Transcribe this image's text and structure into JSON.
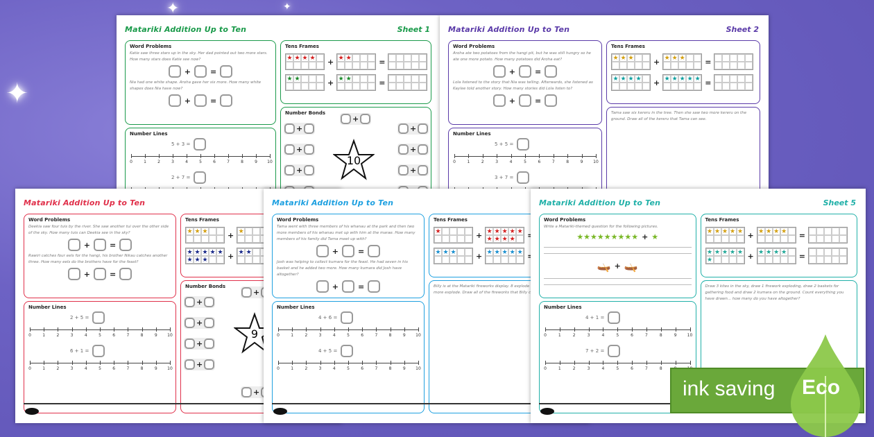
{
  "badge": {
    "text": "ink saving",
    "eco": "Eco",
    "color": "#6aa83a"
  },
  "sheets": [
    {
      "id": "sheet-1",
      "color": "#1a9a4a",
      "title": "Matariki Addition Up to Ten",
      "sheet_label": "Sheet 1",
      "word_problems_heading": "Word Problems",
      "word_problems": [
        "Katie saw three stars up in the sky. Her dad pointed out two more stars. How many stars does Katie see now?",
        "Nia had one white shape. Aroha gave her six more. How many white shapes does Nia have now?"
      ],
      "number_lines_heading": "Number Lines",
      "number_lines": [
        "5 + 3 =",
        "2 + 7 ="
      ],
      "ten_frames_heading": "Tens Frames",
      "ten_frames": [
        {
          "a": 4,
          "b": 2,
          "star_color": "#d42020"
        },
        {
          "a": 2,
          "b": 2,
          "star_color": "#1a8a2a"
        }
      ],
      "number_bonds": {
        "heading": "Number Bonds",
        "target": "10"
      }
    },
    {
      "id": "sheet-2",
      "color": "#5a3aa8",
      "title": "Matariki Addition Up to Ten",
      "sheet_label": "Sheet 2",
      "word_problems_heading": "Word Problems",
      "word_problems": [
        "Aroha ate two potatoes from the hangi pit, but he was still hungry so he ate one more potato. How many potatoes did Aroha eat?",
        "Lola listened to the story that Nia was telling. Afterwards, she listened as Kaylee told another story. How many stories did Lola listen to?"
      ],
      "number_lines_heading": "Number Lines",
      "number_lines": [
        "5 + 5 =",
        "3 + 7 ="
      ],
      "ten_frames_heading": "Tens Frames",
      "ten_frames": [
        {
          "a": 3,
          "b": 3,
          "star_color": "#d4a010"
        },
        {
          "a": 4,
          "b": 5,
          "star_color": "#10a0a0"
        }
      ],
      "text_task": "Tama saw six kereru in the tree. Then she saw two more kereru on the ground. Draw all of the kereru that Tama can see."
    },
    {
      "id": "sheet-3",
      "color": "#e0304a",
      "title": "Matariki Addition Up to Ten",
      "sheet_label": "",
      "word_problems_heading": "Word Problems",
      "word_problems": [
        "Deekia saw four tuis by the river. She saw another tui over the other side of the sky. How many tuis can Deekia see in the sky?",
        "Rawiri catches four eels for the hangi, his brother Nikau catches another three. How many eels do the brothers have for the feast?"
      ],
      "number_lines_heading": "Number Lines",
      "number_lines": [
        "2 + 5 =",
        "6 + 1 ="
      ],
      "ten_frames_heading": "Tens Frames",
      "ten_frames": [
        {
          "a": 3,
          "b": 1,
          "star_color": "#d4a010"
        },
        {
          "a": 8,
          "b": 2,
          "star_color": "#1a2a8a"
        }
      ],
      "number_bonds": {
        "heading": "Number Bonds",
        "target": "9"
      }
    },
    {
      "id": "sheet-4",
      "color": "#1ea0e0",
      "title": "Matariki Addition Up to Ten",
      "sheet_label": "",
      "word_problems_heading": "Word Problems",
      "word_problems": [
        "Tama went with three members of his whanau at the park and then two more members of his whanau met up with him at the marae. How many members of his family did Tama meet up with?",
        "Josh was helping to collect kumara for the feast. He had seven in his basket and he added two more. How many kumara did Josh have altogether?"
      ],
      "number_lines_heading": "Number Lines",
      "number_lines": [
        "4 + 6 =",
        "4 + 5 ="
      ],
      "ten_frames_heading": "Tens Frames",
      "ten_frames": [
        {
          "a": 1,
          "b": 9,
          "star_color": "#d42020"
        },
        {
          "a": 3,
          "b": 5,
          "star_color": "#1a90d0"
        }
      ],
      "text_task": "Billy is at the Matariki fireworks display. 8 explode in the air. He sees three more explode. Draw all of the fireworks that Billy could see."
    },
    {
      "id": "sheet-5",
      "color": "#20b0a8",
      "title": "Matariki Addition Up to Ten",
      "sheet_label": "Sheet 5",
      "word_problems_heading": "Word Problems",
      "write_prompt": "Write a Matariki-themed question for the following pictures.",
      "picture_stars": {
        "a": 9,
        "b": 1,
        "star_color": "#7ab828"
      },
      "number_lines_heading": "Number Lines",
      "number_lines": [
        "4 + 1 =",
        "7 + 2 ="
      ],
      "ten_frames_heading": "Tens Frames",
      "ten_frames": [
        {
          "a": 5,
          "b": 4,
          "star_color": "#d4a010"
        },
        {
          "a": 6,
          "b": 4,
          "star_color": "#20a898"
        }
      ],
      "text_task": "Draw 3 kites in the sky, draw 1 firework exploding, draw 2 baskets for gathering food and draw 2 kumara on the ground. Count everything you have drawn... how many do you have altogether?"
    }
  ]
}
